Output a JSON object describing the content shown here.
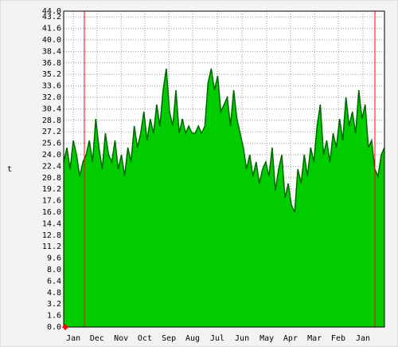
{
  "chart_data": {
    "type": "area",
    "y_label": "t",
    "values": [
      23,
      25,
      22,
      26,
      24,
      21,
      23,
      24,
      26,
      23,
      29,
      25,
      22,
      27,
      24,
      23,
      26,
      22,
      24,
      21,
      25,
      23,
      28,
      25,
      27,
      30,
      26,
      29,
      27,
      31,
      28,
      33,
      36,
      30,
      28,
      33,
      27,
      29,
      27,
      28,
      27,
      27,
      28,
      27,
      28,
      34,
      36,
      33,
      35,
      30,
      31,
      32,
      28,
      33,
      29,
      27,
      25,
      22,
      24,
      21,
      23,
      20,
      22,
      23,
      21,
      25,
      19,
      22,
      24,
      18,
      20,
      17,
      16,
      22,
      20,
      24,
      21,
      25,
      23,
      28,
      31,
      24,
      26,
      23,
      27,
      25,
      29,
      26,
      32,
      28,
      30,
      27,
      33,
      29,
      31,
      25,
      26,
      22,
      21,
      24,
      25
    ],
    "color": "#00cc00",
    "line_color": "#006600",
    "xlim": [
      0,
      100
    ],
    "xticks": [
      {
        "value": 3,
        "label": "Jan"
      },
      {
        "value": 10.4,
        "label": "Dec"
      },
      {
        "value": 17.9,
        "label": "Nov"
      },
      {
        "value": 25.3,
        "label": "Oct"
      },
      {
        "value": 32.8,
        "label": "Sep"
      },
      {
        "value": 40.2,
        "label": "Aug"
      },
      {
        "value": 47.9,
        "label": "Jul"
      },
      {
        "value": 55.6,
        "label": "Jun"
      },
      {
        "value": 63.3,
        "label": "May"
      },
      {
        "value": 70.7,
        "label": "Apr"
      },
      {
        "value": 78.2,
        "label": "Mar"
      },
      {
        "value": 85.6,
        "label": "Feb"
      },
      {
        "value": 93.3,
        "label": "Jan"
      }
    ],
    "ylim": [
      0,
      44
    ],
    "yticks": [
      {
        "value": 0,
        "label": "0.0"
      },
      {
        "value": 1.6,
        "label": "1.6"
      },
      {
        "value": 3.2,
        "label": "3.2"
      },
      {
        "value": 4.8,
        "label": "4.8"
      },
      {
        "value": 6.4,
        "label": "6.4"
      },
      {
        "value": 8,
        "label": "8.0"
      },
      {
        "value": 9.6,
        "label": "9.6"
      },
      {
        "value": 11.2,
        "label": "11.2"
      },
      {
        "value": 12.8,
        "label": "12.8"
      },
      {
        "value": 14.4,
        "label": "14.4"
      },
      {
        "value": 16,
        "label": "16.0"
      },
      {
        "value": 17.6,
        "label": "17.6"
      },
      {
        "value": 19.2,
        "label": "19.2"
      },
      {
        "value": 20.8,
        "label": "20.8"
      },
      {
        "value": 22.4,
        "label": "22.4"
      },
      {
        "value": 24,
        "label": "24.0"
      },
      {
        "value": 25.6,
        "label": "25.6"
      },
      {
        "value": 27.2,
        "label": "27.2"
      },
      {
        "value": 28.8,
        "label": "28.8"
      },
      {
        "value": 30.4,
        "label": "30.4"
      },
      {
        "value": 32,
        "label": "32.0"
      },
      {
        "value": 33.6,
        "label": "33.6"
      },
      {
        "value": 35.2,
        "label": "35.2"
      },
      {
        "value": 36.8,
        "label": "36.8"
      },
      {
        "value": 38.4,
        "label": "38.4"
      },
      {
        "value": 40,
        "label": "40.0"
      },
      {
        "value": 41.6,
        "label": "41.6"
      },
      {
        "value": 43.2,
        "label": "43.2"
      },
      {
        "value": 44,
        "label": "44.0"
      }
    ],
    "grid": true
  }
}
